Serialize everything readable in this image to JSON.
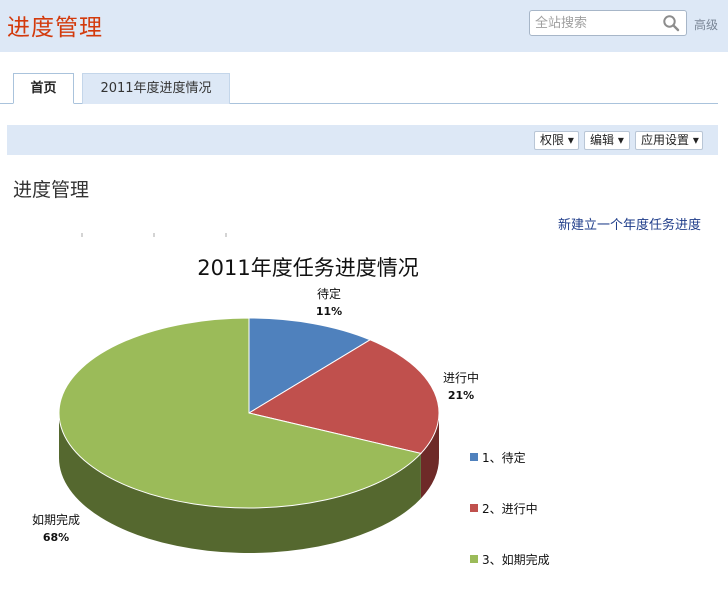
{
  "header": {
    "site_title": "进度管理",
    "search": {
      "placeholder": "全站搜索",
      "value": ""
    },
    "advanced_label": "高级"
  },
  "tabs": [
    {
      "label": "首页",
      "active": true
    },
    {
      "label": "2011年度进度情况",
      "active": false
    }
  ],
  "toolbar": {
    "buttons": [
      {
        "label": "权限 ▾"
      },
      {
        "label": "编辑 ▾"
      },
      {
        "label": "应用设置 ▾"
      }
    ]
  },
  "main": {
    "heading": "进度管理",
    "new_link": "新建立一个年度任务进度"
  },
  "colors": {
    "brand_title": "#d33a0c",
    "header_bg": "#dde8f6",
    "link": "#1f3d8a"
  },
  "chart_data": {
    "type": "pie",
    "title": "2011年度任务进度情况",
    "slices": [
      {
        "label": "待定",
        "percent": "11%",
        "value": 11,
        "color": "#4f81bd",
        "side_color": "#2e4e76",
        "legend": "1、待定"
      },
      {
        "label": "进行中",
        "percent": "21%",
        "value": 21,
        "color": "#c0504d",
        "side_color": "#6e2a28",
        "legend": "2、进行中"
      },
      {
        "label": "如期完成",
        "percent": "68%",
        "value": 68,
        "color": "#9bbb59",
        "side_color": "#55682f",
        "legend": "3、如期完成"
      }
    ],
    "legend_position": "right",
    "style": "3d"
  }
}
